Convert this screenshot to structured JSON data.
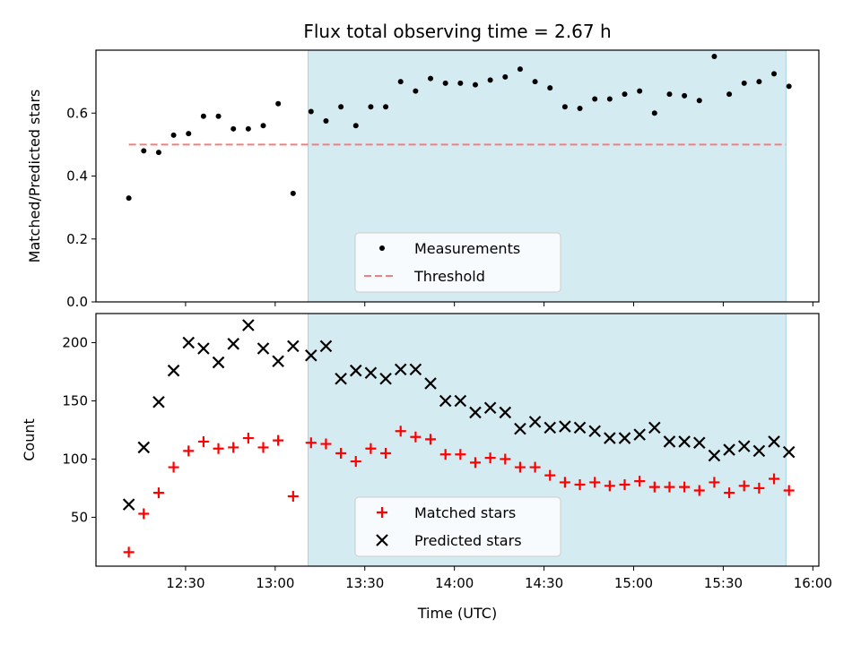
{
  "chart_data": {
    "title": "Flux total observing time = 2.67 h",
    "xlabel": "Time (UTC)",
    "x_ticks": [
      "12:30",
      "13:00",
      "13:30",
      "14:00",
      "14:30",
      "15:00",
      "15:30",
      "16:00"
    ],
    "x_range": [
      "12:00",
      "16:02"
    ],
    "shaded_region": {
      "start": "13:11",
      "end": "15:51",
      "color": "#d5ebf2"
    },
    "grid": false,
    "panels": [
      {
        "type": "scatter",
        "ylabel": "Matched/Predicted stars",
        "ylim": [
          0,
          0.8
        ],
        "y_ticks": [
          "0.0",
          "0.2",
          "0.4",
          "0.6"
        ],
        "legend_placement": "lower-center",
        "threshold": {
          "name": "Threshold",
          "value": 0.5,
          "start": "12:11",
          "end": "15:51",
          "color": "#f08080"
        },
        "series": [
          {
            "name": "Measurements",
            "color": "#000000",
            "marker": "dot",
            "points": [
              [
                "12:11",
                0.33
              ],
              [
                "12:16",
                0.48
              ],
              [
                "12:21",
                0.475
              ],
              [
                "12:26",
                0.53
              ],
              [
                "12:31",
                0.535
              ],
              [
                "12:36",
                0.59
              ],
              [
                "12:41",
                0.59
              ],
              [
                "12:46",
                0.55
              ],
              [
                "12:51",
                0.55
              ],
              [
                "12:56",
                0.56
              ],
              [
                "13:01",
                0.63
              ],
              [
                "13:06",
                0.345
              ],
              [
                "13:12",
                0.605
              ],
              [
                "13:17",
                0.575
              ],
              [
                "13:22",
                0.62
              ],
              [
                "13:27",
                0.56
              ],
              [
                "13:32",
                0.62
              ],
              [
                "13:37",
                0.62
              ],
              [
                "13:42",
                0.7
              ],
              [
                "13:47",
                0.67
              ],
              [
                "13:52",
                0.71
              ],
              [
                "13:57",
                0.695
              ],
              [
                "14:02",
                0.695
              ],
              [
                "14:07",
                0.69
              ],
              [
                "14:12",
                0.705
              ],
              [
                "14:17",
                0.715
              ],
              [
                "14:22",
                0.74
              ],
              [
                "14:27",
                0.7
              ],
              [
                "14:32",
                0.68
              ],
              [
                "14:37",
                0.62
              ],
              [
                "14:42",
                0.615
              ],
              [
                "14:47",
                0.645
              ],
              [
                "14:52",
                0.645
              ],
              [
                "14:57",
                0.66
              ],
              [
                "15:02",
                0.67
              ],
              [
                "15:07",
                0.6
              ],
              [
                "15:12",
                0.66
              ],
              [
                "15:17",
                0.655
              ],
              [
                "15:22",
                0.64
              ],
              [
                "15:27",
                0.78
              ],
              [
                "15:32",
                0.66
              ],
              [
                "15:37",
                0.695
              ],
              [
                "15:42",
                0.7
              ],
              [
                "15:47",
                0.725
              ],
              [
                "15:52",
                0.685
              ]
            ]
          }
        ]
      },
      {
        "type": "scatter",
        "ylabel": "Count",
        "ylim": [
          8,
          225
        ],
        "y_ticks": [
          "50",
          "100",
          "150",
          "200"
        ],
        "legend_placement": "lower-center",
        "series": [
          {
            "name": "Matched stars",
            "color": "#ff0000",
            "marker": "plus",
            "points": [
              [
                "12:11",
                20
              ],
              [
                "12:16",
                53
              ],
              [
                "12:21",
                71
              ],
              [
                "12:26",
                93
              ],
              [
                "12:31",
                107
              ],
              [
                "12:36",
                115
              ],
              [
                "12:41",
                109
              ],
              [
                "12:46",
                110
              ],
              [
                "12:51",
                118
              ],
              [
                "12:56",
                110
              ],
              [
                "13:01",
                116
              ],
              [
                "13:06",
                68
              ],
              [
                "13:12",
                114
              ],
              [
                "13:17",
                113
              ],
              [
                "13:22",
                105
              ],
              [
                "13:27",
                98
              ],
              [
                "13:32",
                109
              ],
              [
                "13:37",
                105
              ],
              [
                "13:42",
                124
              ],
              [
                "13:47",
                119
              ],
              [
                "13:52",
                117
              ],
              [
                "13:57",
                104
              ],
              [
                "14:02",
                104
              ],
              [
                "14:07",
                97
              ],
              [
                "14:12",
                101
              ],
              [
                "14:17",
                100
              ],
              [
                "14:22",
                93
              ],
              [
                "14:27",
                93
              ],
              [
                "14:32",
                86
              ],
              [
                "14:37",
                80
              ],
              [
                "14:42",
                78
              ],
              [
                "14:47",
                80
              ],
              [
                "14:52",
                77
              ],
              [
                "14:57",
                78
              ],
              [
                "15:02",
                81
              ],
              [
                "15:07",
                76
              ],
              [
                "15:12",
                76
              ],
              [
                "15:17",
                76
              ],
              [
                "15:22",
                73
              ],
              [
                "15:27",
                80
              ],
              [
                "15:32",
                71
              ],
              [
                "15:37",
                77
              ],
              [
                "15:42",
                75
              ],
              [
                "15:47",
                83
              ],
              [
                "15:52",
                73
              ]
            ]
          },
          {
            "name": "Predicted stars",
            "color": "#000000",
            "marker": "x",
            "points": [
              [
                "12:11",
                61
              ],
              [
                "12:16",
                110
              ],
              [
                "12:21",
                149
              ],
              [
                "12:26",
                176
              ],
              [
                "12:31",
                200
              ],
              [
                "12:36",
                195
              ],
              [
                "12:41",
                183
              ],
              [
                "12:46",
                199
              ],
              [
                "12:51",
                215
              ],
              [
                "12:56",
                195
              ],
              [
                "13:01",
                184
              ],
              [
                "13:06",
                197
              ],
              [
                "13:12",
                189
              ],
              [
                "13:17",
                197
              ],
              [
                "13:22",
                169
              ],
              [
                "13:27",
                176
              ],
              [
                "13:32",
                174
              ],
              [
                "13:37",
                169
              ],
              [
                "13:42",
                177
              ],
              [
                "13:47",
                177
              ],
              [
                "13:52",
                165
              ],
              [
                "13:57",
                150
              ],
              [
                "14:02",
                150
              ],
              [
                "14:07",
                140
              ],
              [
                "14:12",
                144
              ],
              [
                "14:17",
                140
              ],
              [
                "14:22",
                126
              ],
              [
                "14:27",
                132
              ],
              [
                "14:32",
                127
              ],
              [
                "14:37",
                128
              ],
              [
                "14:42",
                127
              ],
              [
                "14:47",
                124
              ],
              [
                "14:52",
                118
              ],
              [
                "14:57",
                118
              ],
              [
                "15:02",
                121
              ],
              [
                "15:07",
                127
              ],
              [
                "15:12",
                115
              ],
              [
                "15:17",
                115
              ],
              [
                "15:22",
                114
              ],
              [
                "15:27",
                103
              ],
              [
                "15:32",
                108
              ],
              [
                "15:37",
                111
              ],
              [
                "15:42",
                107
              ],
              [
                "15:47",
                115
              ],
              [
                "15:52",
                106
              ]
            ]
          }
        ]
      }
    ]
  }
}
